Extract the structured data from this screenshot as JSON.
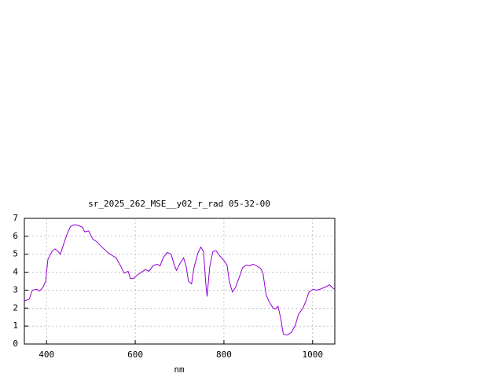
{
  "chart_data": {
    "type": "line",
    "title": "sr_2025_262_MSE__y02_r_rad 05-32-00",
    "x_label": "nm",
    "x": [
      350,
      361,
      368,
      378,
      384,
      392,
      398,
      403,
      412,
      419,
      426,
      431,
      437,
      446,
      454,
      463,
      472,
      481,
      486,
      495,
      504,
      513,
      525,
      538,
      550,
      557,
      568,
      575,
      584,
      589,
      596,
      605,
      614,
      623,
      631,
      640,
      649,
      656,
      663,
      672,
      681,
      688,
      693,
      700,
      709,
      715,
      720,
      727,
      732,
      741,
      748,
      754,
      759,
      762,
      768,
      775,
      782,
      791,
      800,
      807,
      812,
      819,
      826,
      835,
      842,
      851,
      858,
      865,
      874,
      883,
      888,
      895,
      902,
      911,
      916,
      922,
      927,
      934,
      943,
      952,
      961,
      968,
      978,
      985,
      992,
      1001,
      1009,
      1017,
      1026,
      1035,
      1038,
      1044,
      1049
    ],
    "series": [
      {
        "color": "#9400d3",
        "values": [
          2.4,
          2.5,
          3.0,
          3.05,
          2.95,
          3.15,
          3.5,
          4.7,
          5.15,
          5.3,
          5.15,
          5.0,
          5.45,
          6.1,
          6.55,
          6.65,
          6.6,
          6.5,
          6.25,
          6.3,
          5.85,
          5.7,
          5.4,
          5.1,
          4.9,
          4.8,
          4.3,
          3.95,
          4.05,
          3.65,
          3.65,
          3.85,
          4.0,
          4.15,
          4.05,
          4.35,
          4.45,
          4.35,
          4.8,
          5.1,
          5.0,
          4.4,
          4.1,
          4.45,
          4.8,
          4.3,
          3.5,
          3.35,
          4.2,
          5.05,
          5.4,
          5.15,
          3.4,
          2.65,
          4.3,
          5.15,
          5.2,
          4.9,
          4.65,
          4.4,
          3.5,
          2.9,
          3.15,
          3.75,
          4.25,
          4.4,
          4.35,
          4.45,
          4.35,
          4.2,
          3.95,
          2.75,
          2.35,
          2.0,
          1.95,
          2.1,
          1.55,
          0.55,
          0.5,
          0.65,
          1.05,
          1.65,
          2.0,
          2.4,
          2.9,
          3.05,
          3.0,
          3.05,
          3.15,
          3.25,
          3.3,
          3.15,
          3.05
        ]
      }
    ],
    "xlim": [
      350,
      1050
    ],
    "xticks": [
      400,
      600,
      800,
      1000
    ],
    "ylim": [
      0,
      7
    ],
    "yticks": [
      0,
      1,
      2,
      3,
      4,
      5,
      6,
      7
    ],
    "grid": true
  }
}
